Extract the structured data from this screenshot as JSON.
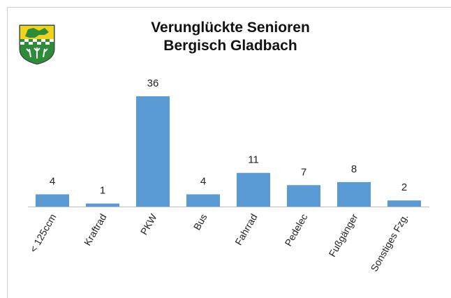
{
  "chart_data": {
    "type": "bar",
    "title_lines": [
      "Verunglückte Senioren",
      "Bergisch Gladbach"
    ],
    "categories": [
      "< 125ccm",
      "Kraftrad",
      "PKW",
      "Bus",
      "Fahrrad",
      "Pedelec",
      "Fußgänger",
      "Sonstiges Fzg."
    ],
    "values": [
      4,
      1,
      36,
      4,
      11,
      7,
      8,
      2
    ],
    "color": "#5b9bd5"
  }
}
